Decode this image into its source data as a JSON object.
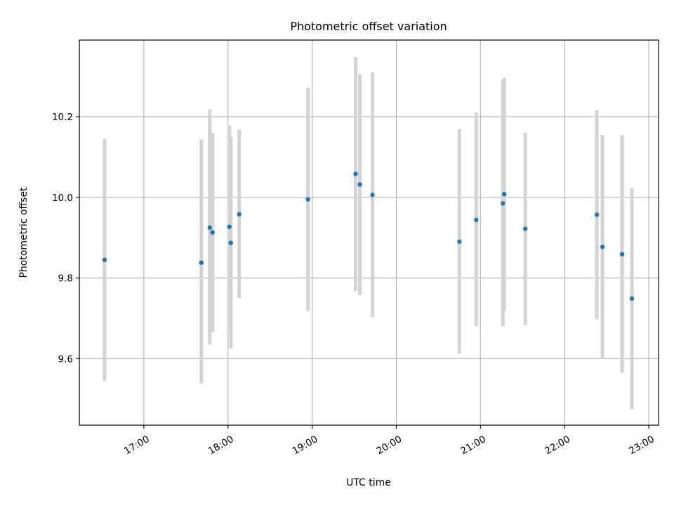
{
  "chart_data": {
    "type": "scatter",
    "title": "Photometric offset variation",
    "xlabel": "UTC time",
    "ylabel": "Photometric offset",
    "x_tick_labels": [
      "17:00",
      "18:00",
      "19:00",
      "20:00",
      "21:00",
      "22:00",
      "23:00"
    ],
    "y_tick_labels": [
      "9.6",
      "9.8",
      "10.0",
      "10.2"
    ],
    "y_tick_values": [
      9.6,
      9.8,
      10.0,
      10.2
    ],
    "x_tick_values": [
      "17:00",
      "18:00",
      "19:00",
      "20:00",
      "21:00",
      "22:00",
      "23:00"
    ],
    "xlim": [
      "16:14",
      "23:07"
    ],
    "ylim": [
      9.435,
      10.39
    ],
    "grid": true,
    "colors": {
      "point": "#1f77b4",
      "errorbar": "#d3d3d3",
      "grid": "#b0b0b0"
    },
    "points": [
      {
        "x": "16:32",
        "y": 9.845,
        "err_low": 9.545,
        "err_high": 10.145
      },
      {
        "x": "17:41",
        "y": 9.838,
        "err_low": 9.538,
        "err_high": 10.143
      },
      {
        "x": "17:47",
        "y": 9.925,
        "err_low": 9.635,
        "err_high": 10.218
      },
      {
        "x": "17:49",
        "y": 9.913,
        "err_low": 9.665,
        "err_high": 10.16
      },
      {
        "x": "18:01",
        "y": 9.927,
        "err_low": 9.675,
        "err_high": 10.178
      },
      {
        "x": "18:02",
        "y": 9.887,
        "err_low": 9.625,
        "err_high": 10.15
      },
      {
        "x": "18:08",
        "y": 9.958,
        "err_low": 9.75,
        "err_high": 10.168
      },
      {
        "x": "18:57",
        "y": 9.995,
        "err_low": 9.718,
        "err_high": 10.272
      },
      {
        "x": "19:31",
        "y": 10.058,
        "err_low": 9.768,
        "err_high": 10.348
      },
      {
        "x": "19:34",
        "y": 10.032,
        "err_low": 9.758,
        "err_high": 10.305
      },
      {
        "x": "19:43",
        "y": 10.006,
        "err_low": 9.703,
        "err_high": 10.31
      },
      {
        "x": "20:45",
        "y": 9.89,
        "err_low": 9.612,
        "err_high": 10.17
      },
      {
        "x": "20:57",
        "y": 9.944,
        "err_low": 9.68,
        "err_high": 10.21
      },
      {
        "x": "21:16",
        "y": 9.985,
        "err_low": 9.68,
        "err_high": 10.29
      },
      {
        "x": "21:17",
        "y": 10.008,
        "err_low": 9.718,
        "err_high": 10.296
      },
      {
        "x": "21:32",
        "y": 9.922,
        "err_low": 9.684,
        "err_high": 10.16
      },
      {
        "x": "22:23",
        "y": 9.957,
        "err_low": 9.698,
        "err_high": 10.216
      },
      {
        "x": "22:27",
        "y": 9.877,
        "err_low": 9.6,
        "err_high": 10.155
      },
      {
        "x": "22:41",
        "y": 9.859,
        "err_low": 9.565,
        "err_high": 10.154
      },
      {
        "x": "22:48",
        "y": 9.749,
        "err_low": 9.475,
        "err_high": 10.023
      }
    ]
  }
}
